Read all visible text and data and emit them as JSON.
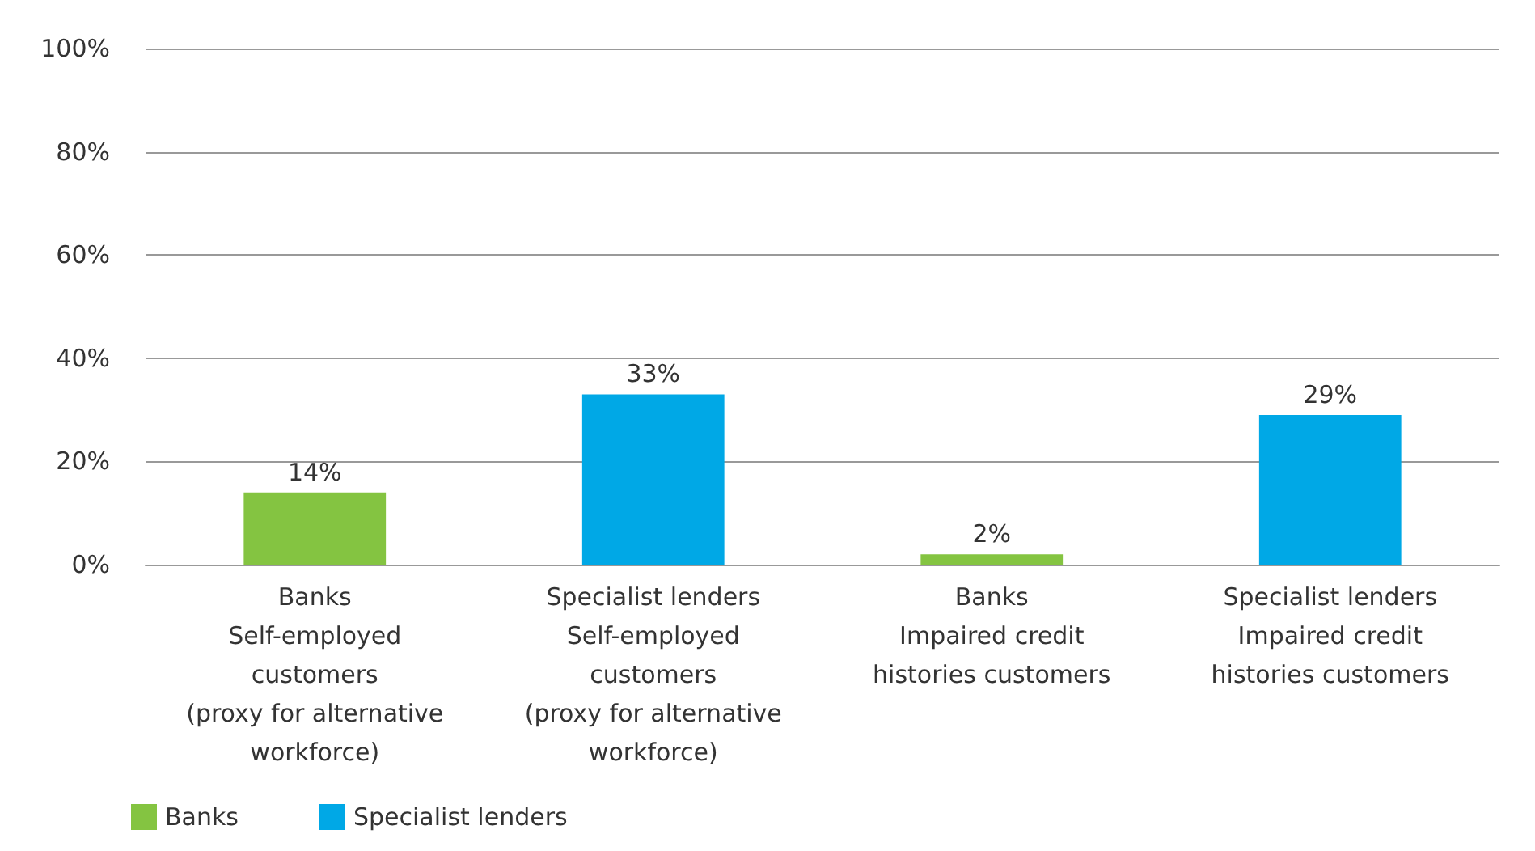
{
  "chart_data": {
    "type": "bar",
    "categories": [
      "Banks\nSelf-employed\ncustomers\n(proxy for alternative\nworkforce)",
      "Specialist lenders\nSelf-employed\ncustomers\n(proxy for alternative\nworkforce)",
      "Banks\nImpaired credit\nhistories customers",
      "Specialist lenders\nImpaired credit\nhistories customers"
    ],
    "series": [
      {
        "name": "Banks",
        "color": "#84c441",
        "values": [
          14,
          null,
          2,
          null
        ],
        "value_labels": [
          "14%",
          null,
          "2%",
          null
        ]
      },
      {
        "name": "Specialist lenders",
        "color": "#00a8e6",
        "values": [
          null,
          33,
          null,
          29
        ],
        "value_labels": [
          null,
          "33%",
          null,
          "29%"
        ]
      }
    ],
    "ylim": [
      0,
      100
    ],
    "yticks": [
      {
        "value": 0,
        "label": "0%"
      },
      {
        "value": 20,
        "label": "20%"
      },
      {
        "value": 40,
        "label": "40%"
      },
      {
        "value": 60,
        "label": "60%"
      },
      {
        "value": 80,
        "label": "80%"
      },
      {
        "value": 100,
        "label": "100%"
      }
    ],
    "grid": "y",
    "legend": "bottom left"
  }
}
